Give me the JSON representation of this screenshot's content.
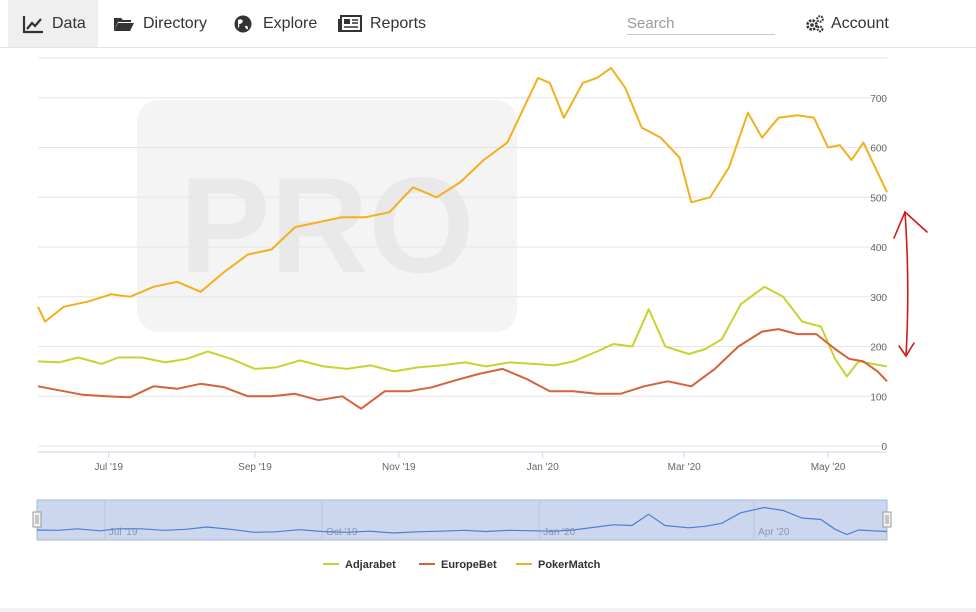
{
  "nav": {
    "items": [
      {
        "label": "Data",
        "icon": "area-chart-icon",
        "active": true
      },
      {
        "label": "Directory",
        "icon": "folder-open-icon",
        "active": false
      },
      {
        "label": "Explore",
        "icon": "globe-icon",
        "active": false
      },
      {
        "label": "Reports",
        "icon": "newspaper-icon",
        "active": false
      }
    ],
    "search_placeholder": "Search",
    "account_label": "Account",
    "account_icon": "gears-icon"
  },
  "chart_data": {
    "type": "line",
    "title": "",
    "xlabel": "",
    "ylabel": "",
    "watermark": "PRO",
    "x_range": [
      "2019-06-01",
      "2020-05-26"
    ],
    "ylim": [
      0,
      780
    ],
    "y_ticks": [
      0,
      100,
      200,
      300,
      400,
      500,
      600,
      700
    ],
    "x_ticks": [
      {
        "date": "2019-07-01",
        "label": "Jul '19"
      },
      {
        "date": "2019-09-01",
        "label": "Sep '19"
      },
      {
        "date": "2019-11-01",
        "label": "Nov '19"
      },
      {
        "date": "2020-01-01",
        "label": "Jan '20"
      },
      {
        "date": "2020-03-01",
        "label": "Mar '20"
      },
      {
        "date": "2020-05-01",
        "label": "May '20"
      }
    ],
    "navigator_ticks": [
      {
        "date": "2019-07-01",
        "label": "Jul '19"
      },
      {
        "date": "2019-10-01",
        "label": "Oct '19"
      },
      {
        "date": "2020-01-01",
        "label": "Jan '20"
      },
      {
        "date": "2020-04-01",
        "label": "Apr '20"
      }
    ],
    "grid": true,
    "legend_position": "bottom-center",
    "series": [
      {
        "name": "Adjarabet",
        "color": "#c9d22f",
        "points": [
          [
            "2019-06-01",
            170
          ],
          [
            "2019-06-10",
            168
          ],
          [
            "2019-06-18",
            178
          ],
          [
            "2019-06-28",
            165
          ],
          [
            "2019-07-05",
            178
          ],
          [
            "2019-07-15",
            178
          ],
          [
            "2019-07-25",
            168
          ],
          [
            "2019-08-03",
            175
          ],
          [
            "2019-08-12",
            190
          ],
          [
            "2019-08-22",
            175
          ],
          [
            "2019-09-01",
            155
          ],
          [
            "2019-09-10",
            158
          ],
          [
            "2019-09-20",
            172
          ],
          [
            "2019-09-30",
            160
          ],
          [
            "2019-10-10",
            155
          ],
          [
            "2019-10-20",
            162
          ],
          [
            "2019-10-30",
            150
          ],
          [
            "2019-11-09",
            158
          ],
          [
            "2019-11-19",
            162
          ],
          [
            "2019-11-29",
            168
          ],
          [
            "2019-12-08",
            160
          ],
          [
            "2019-12-18",
            168
          ],
          [
            "2019-12-28",
            165
          ],
          [
            "2020-01-06",
            162
          ],
          [
            "2020-01-14",
            170
          ],
          [
            "2020-01-24",
            190
          ],
          [
            "2020-01-31",
            205
          ],
          [
            "2020-02-08",
            200
          ],
          [
            "2020-02-15",
            275
          ],
          [
            "2020-02-22",
            200
          ],
          [
            "2020-03-03",
            185
          ],
          [
            "2020-03-10",
            195
          ],
          [
            "2020-03-17",
            215
          ],
          [
            "2020-03-25",
            285
          ],
          [
            "2020-04-04",
            320
          ],
          [
            "2020-04-12",
            300
          ],
          [
            "2020-04-20",
            250
          ],
          [
            "2020-04-28",
            240
          ],
          [
            "2020-05-04",
            175
          ],
          [
            "2020-05-09",
            140
          ],
          [
            "2020-05-14",
            170
          ],
          [
            "2020-05-20",
            165
          ],
          [
            "2020-05-26",
            160
          ]
        ]
      },
      {
        "name": "EuropeBet",
        "color": "#d4623a",
        "points": [
          [
            "2019-06-01",
            120
          ],
          [
            "2019-06-10",
            112
          ],
          [
            "2019-06-20",
            103
          ],
          [
            "2019-06-30",
            100
          ],
          [
            "2019-07-10",
            98
          ],
          [
            "2019-07-20",
            120
          ],
          [
            "2019-07-30",
            115
          ],
          [
            "2019-08-09",
            125
          ],
          [
            "2019-08-19",
            118
          ],
          [
            "2019-08-29",
            100
          ],
          [
            "2019-09-08",
            100
          ],
          [
            "2019-09-18",
            105
          ],
          [
            "2019-09-28",
            92
          ],
          [
            "2019-10-08",
            100
          ],
          [
            "2019-10-16",
            75
          ],
          [
            "2019-10-26",
            110
          ],
          [
            "2019-11-05",
            110
          ],
          [
            "2019-11-15",
            118
          ],
          [
            "2019-11-25",
            132
          ],
          [
            "2019-12-05",
            145
          ],
          [
            "2019-12-15",
            155
          ],
          [
            "2019-12-25",
            135
          ],
          [
            "2020-01-04",
            110
          ],
          [
            "2020-01-14",
            110
          ],
          [
            "2020-01-24",
            105
          ],
          [
            "2020-02-03",
            105
          ],
          [
            "2020-02-13",
            120
          ],
          [
            "2020-02-23",
            130
          ],
          [
            "2020-03-04",
            120
          ],
          [
            "2020-03-14",
            155
          ],
          [
            "2020-03-24",
            200
          ],
          [
            "2020-04-03",
            230
          ],
          [
            "2020-04-10",
            235
          ],
          [
            "2020-04-18",
            225
          ],
          [
            "2020-04-26",
            225
          ],
          [
            "2020-05-04",
            195
          ],
          [
            "2020-05-10",
            175
          ],
          [
            "2020-05-16",
            170
          ],
          [
            "2020-05-22",
            150
          ],
          [
            "2020-05-26",
            130
          ]
        ]
      },
      {
        "name": "PokerMatch",
        "color": "#f2b01e",
        "points": [
          [
            "2019-06-01",
            280
          ],
          [
            "2019-06-04",
            250
          ],
          [
            "2019-06-12",
            280
          ],
          [
            "2019-06-22",
            290
          ],
          [
            "2019-07-02",
            305
          ],
          [
            "2019-07-10",
            300
          ],
          [
            "2019-07-20",
            320
          ],
          [
            "2019-07-30",
            330
          ],
          [
            "2019-08-09",
            310
          ],
          [
            "2019-08-19",
            350
          ],
          [
            "2019-08-29",
            385
          ],
          [
            "2019-09-08",
            395
          ],
          [
            "2019-09-18",
            440
          ],
          [
            "2019-09-28",
            450
          ],
          [
            "2019-10-08",
            460
          ],
          [
            "2019-10-18",
            460
          ],
          [
            "2019-10-28",
            470
          ],
          [
            "2019-11-07",
            520
          ],
          [
            "2019-11-17",
            500
          ],
          [
            "2019-11-27",
            530
          ],
          [
            "2019-12-07",
            575
          ],
          [
            "2019-12-17",
            610
          ],
          [
            "2019-12-25",
            690
          ],
          [
            "2019-12-30",
            740
          ],
          [
            "2020-01-04",
            730
          ],
          [
            "2020-01-10",
            660
          ],
          [
            "2020-01-18",
            730
          ],
          [
            "2020-01-24",
            740
          ],
          [
            "2020-01-30",
            760
          ],
          [
            "2020-02-05",
            720
          ],
          [
            "2020-02-12",
            640
          ],
          [
            "2020-02-20",
            620
          ],
          [
            "2020-02-28",
            580
          ],
          [
            "2020-03-04",
            490
          ],
          [
            "2020-03-12",
            500
          ],
          [
            "2020-03-20",
            560
          ],
          [
            "2020-03-28",
            670
          ],
          [
            "2020-04-03",
            620
          ],
          [
            "2020-04-10",
            660
          ],
          [
            "2020-04-18",
            665
          ],
          [
            "2020-04-25",
            660
          ],
          [
            "2020-05-01",
            600
          ],
          [
            "2020-05-06",
            605
          ],
          [
            "2020-05-11",
            575
          ],
          [
            "2020-05-16",
            610
          ],
          [
            "2020-05-21",
            560
          ],
          [
            "2020-05-26",
            510
          ]
        ]
      }
    ]
  }
}
